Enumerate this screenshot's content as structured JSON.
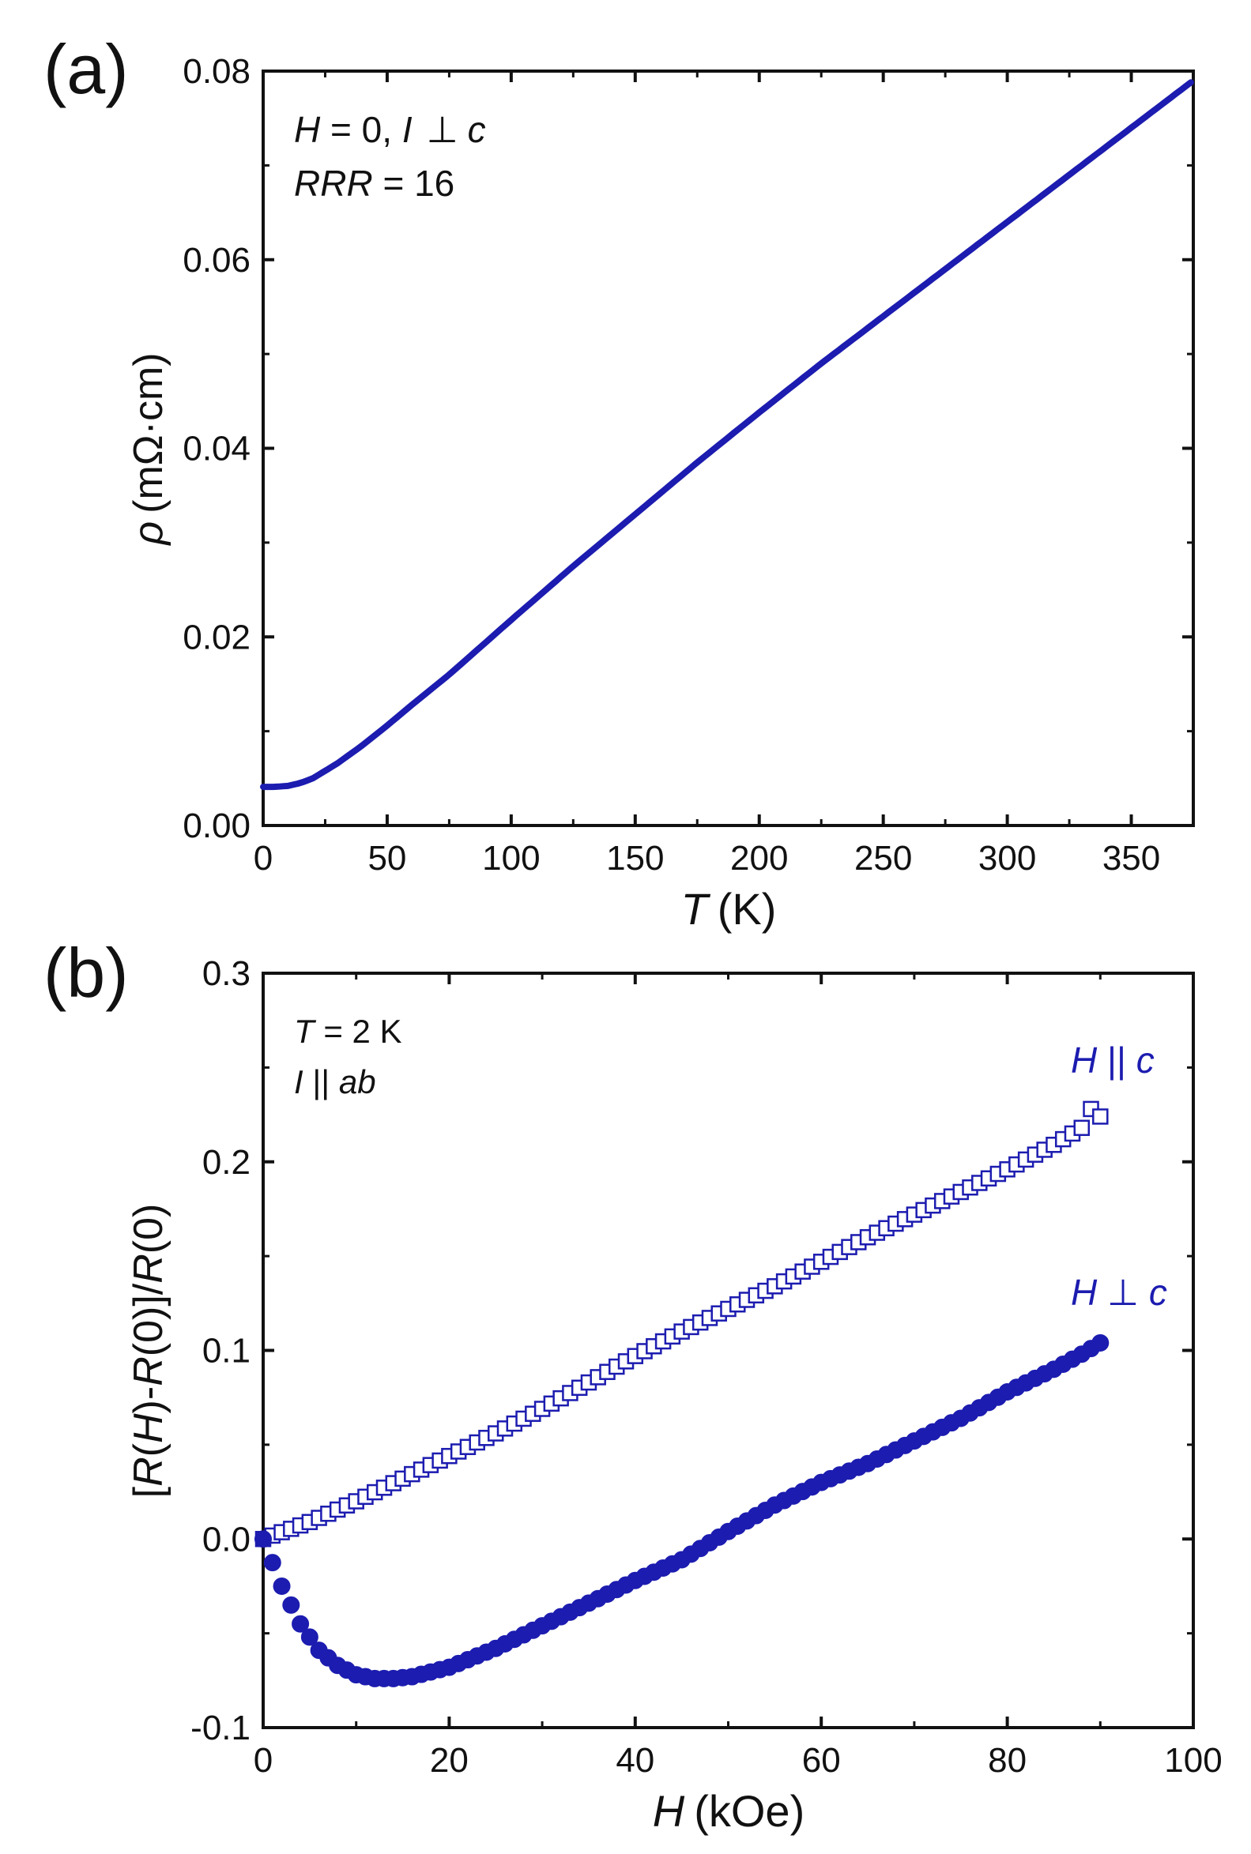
{
  "panel_a": {
    "label": "(a)",
    "annotation_line1": {
      "var": "H",
      "rest": " = 0, ",
      "var2": "I",
      "sym": "⊥",
      "var3": "c"
    },
    "annotation_line2": {
      "var": "RRR",
      "rest": " = 16"
    },
    "y_label": {
      "symbol": "ρ",
      "unit": "(mΩ·cm)"
    },
    "x_label": {
      "symbol": "T",
      "unit": "(K)"
    }
  },
  "panel_b": {
    "label": "(b)",
    "annotation_line1": {
      "var": "T",
      "rest": " = 2 K"
    },
    "annotation_line2": {
      "var": "I",
      "sym": " || ",
      "var2": "ab"
    },
    "legend_parallel": {
      "var": "H",
      "sym": " || ",
      "var2": "c"
    },
    "legend_perp": {
      "var": "H",
      "sym": " ⊥ ",
      "var2": "c"
    },
    "y_label": {
      "p1": "[",
      "v1": "R",
      "p2": "(",
      "v2": "H",
      "p3": ")-",
      "v3": "R",
      "p4": "(0)]/",
      "v4": "R",
      "p5": "(0)"
    },
    "x_label": {
      "symbol": "H",
      "unit": "(kOe)"
    }
  },
  "colors": {
    "series": "#1c1cb0",
    "axis": "#111111"
  },
  "chart_data": [
    {
      "type": "line",
      "title": "",
      "xlabel": "T (K)",
      "ylabel": "ρ (mΩ·cm)",
      "xlim": [
        0,
        375
      ],
      "ylim": [
        0,
        0.08
      ],
      "xticks": [
        0,
        50,
        100,
        150,
        200,
        250,
        300,
        350
      ],
      "xtick_labels": [
        "0",
        "50",
        "100",
        "150",
        "200",
        "250",
        "300",
        "350"
      ],
      "yticks": [
        0,
        0.02,
        0.04,
        0.06,
        0.08
      ],
      "ytick_labels": [
        "0.00",
        "0.02",
        "0.04",
        "0.06",
        "0.08"
      ],
      "series": [
        {
          "name": "H = 0, I ⊥ c",
          "x": [
            0,
            5,
            10,
            15,
            20,
            25,
            30,
            40,
            50,
            60,
            75,
            100,
            125,
            150,
            175,
            200,
            225,
            250,
            275,
            300,
            325,
            350,
            375
          ],
          "values": [
            0.0041,
            0.0041,
            0.0042,
            0.0045,
            0.005,
            0.0058,
            0.0066,
            0.0085,
            0.0106,
            0.0128,
            0.016,
            0.0218,
            0.0275,
            0.033,
            0.0385,
            0.0438,
            0.049,
            0.054,
            0.059,
            0.064,
            0.069,
            0.074,
            0.079
          ]
        }
      ]
    },
    {
      "type": "scatter",
      "title": "",
      "xlabel": "H (kOe)",
      "ylabel": "[R(H)-R(0)]/R(0)",
      "xlim": [
        0,
        100
      ],
      "ylim": [
        -0.1,
        0.3
      ],
      "xticks": [
        0,
        20,
        40,
        60,
        80,
        100
      ],
      "xtick_labels": [
        "0",
        "20",
        "40",
        "60",
        "80",
        "100"
      ],
      "yticks": [
        -0.1,
        0,
        0.1,
        0.2,
        0.3
      ],
      "ytick_labels": [
        "-0.1",
        "0.0",
        "0.1",
        "0.2",
        "0.3"
      ],
      "series": [
        {
          "name": "H || c",
          "marker": "open-square",
          "x": [
            0,
            5,
            10,
            15,
            20,
            25,
            30,
            35,
            40,
            45,
            50,
            55,
            60,
            65,
            70,
            75,
            80,
            85,
            88,
            89,
            90
          ],
          "values": [
            0.0,
            0.009,
            0.02,
            0.032,
            0.044,
            0.056,
            0.069,
            0.083,
            0.097,
            0.11,
            0.122,
            0.134,
            0.147,
            0.16,
            0.172,
            0.184,
            0.196,
            0.209,
            0.218,
            0.228,
            0.224
          ]
        },
        {
          "name": "H ⊥ c",
          "marker": "filled-circle",
          "x": [
            0,
            2,
            4,
            6,
            8,
            10,
            12,
            14,
            16,
            20,
            25,
            30,
            35,
            40,
            45,
            50,
            55,
            60,
            65,
            70,
            75,
            80,
            85,
            88,
            90
          ],
          "values": [
            0.0,
            -0.025,
            -0.045,
            -0.059,
            -0.067,
            -0.072,
            -0.074,
            -0.074,
            -0.073,
            -0.068,
            -0.058,
            -0.046,
            -0.034,
            -0.022,
            -0.011,
            0.004,
            0.018,
            0.03,
            0.04,
            0.052,
            0.064,
            0.078,
            0.09,
            0.098,
            0.104
          ]
        }
      ]
    }
  ]
}
